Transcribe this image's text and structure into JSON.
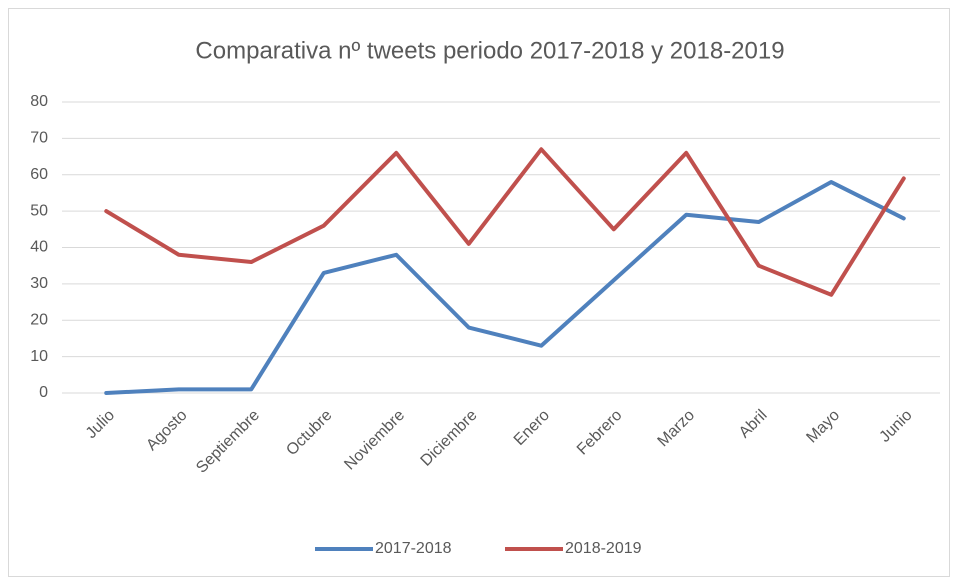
{
  "chart_data": {
    "type": "line",
    "title": "Comparativa nº tweets periodo 2017-2018 y 2018-2019",
    "categories": [
      "Julio",
      "Agosto",
      "Septiembre",
      "Octubre",
      "Noviembre",
      "Diciembre",
      "Enero",
      "Febrero",
      "Marzo",
      "Abril",
      "Mayo",
      "Junio"
    ],
    "series": [
      {
        "name": "2017-2018",
        "color": "#4f81bd",
        "values": [
          0,
          1,
          1,
          33,
          38,
          18,
          13,
          31,
          49,
          47,
          58,
          48
        ]
      },
      {
        "name": "2018-2019",
        "color": "#c0504d",
        "values": [
          50,
          38,
          36,
          46,
          66,
          41,
          67,
          45,
          66,
          35,
          27,
          59
        ]
      }
    ],
    "ylim": [
      0,
      80
    ],
    "yticks": [
      0,
      10,
      20,
      30,
      40,
      50,
      60,
      70,
      80
    ],
    "grid": true,
    "legend": "bottom"
  }
}
